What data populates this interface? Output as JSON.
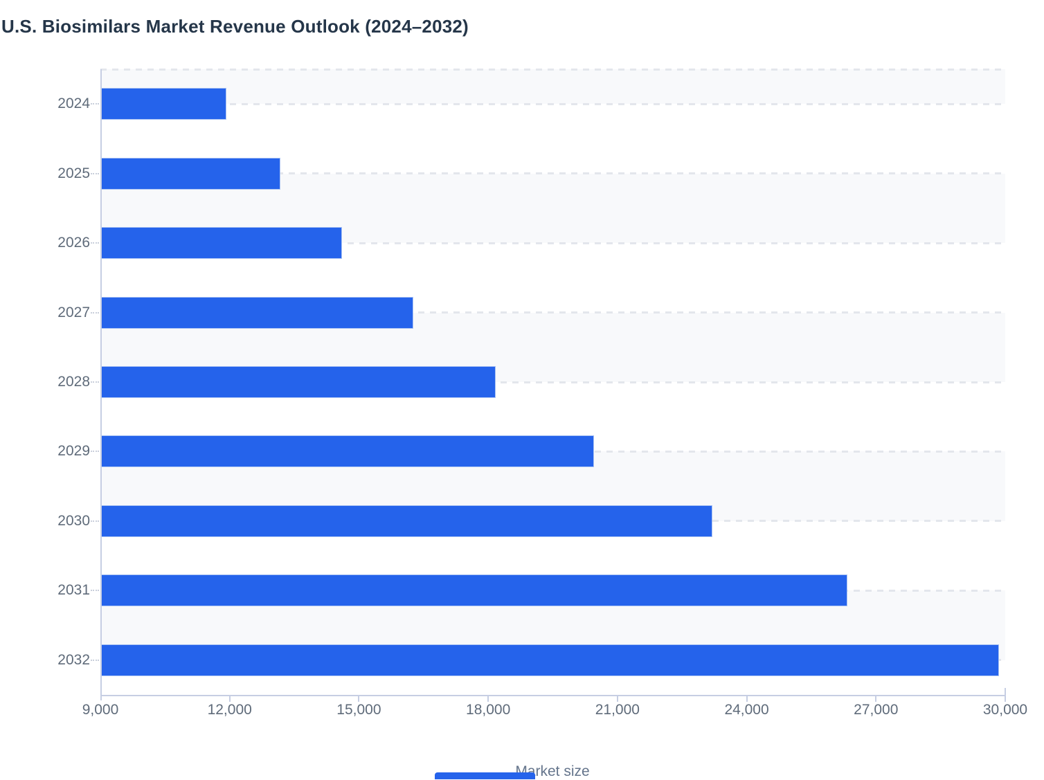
{
  "title": "U.S. Biosimilars Market Revenue Outlook (2024–2032)",
  "chart_data": {
    "type": "bar",
    "orientation": "horizontal",
    "title": "U.S. Biosimilars Market Revenue Outlook (2024–2032)",
    "categories": [
      "2024",
      "2025",
      "2026",
      "2027",
      "2028",
      "2029",
      "2030",
      "2031",
      "2032"
    ],
    "values": [
      11930,
      13180,
      14610,
      16260,
      18180,
      20460,
      23200,
      26330,
      29850
    ],
    "xlabel": "Market size",
    "ylabel": "",
    "xlim": [
      9000,
      30000
    ],
    "xticks": [
      9000,
      12000,
      15000,
      18000,
      21000,
      24000,
      27000,
      30000
    ],
    "xtick_labels": [
      "9,000",
      "12,000",
      "15,000",
      "18,000",
      "21,000",
      "24,000",
      "27,000",
      "30,000"
    ],
    "grid": "dashed horizontal lines at plot top and at each row centerline; alternating light-gray row stripes between centerlines starting gray at top",
    "legend": "none"
  },
  "colors": {
    "bar_fill": "#2563eb",
    "bar_outline": "#aac3f3",
    "title_text": "#253649",
    "axis_text": "#5f6b7a",
    "axis_line": "#c6cee3",
    "grid_dash": "#e3e6ec",
    "band_gray": "#f8f9fb",
    "bottom_element": "#2563eb"
  },
  "bottom_element": {
    "note": "clipped blue element at bottom edge"
  }
}
